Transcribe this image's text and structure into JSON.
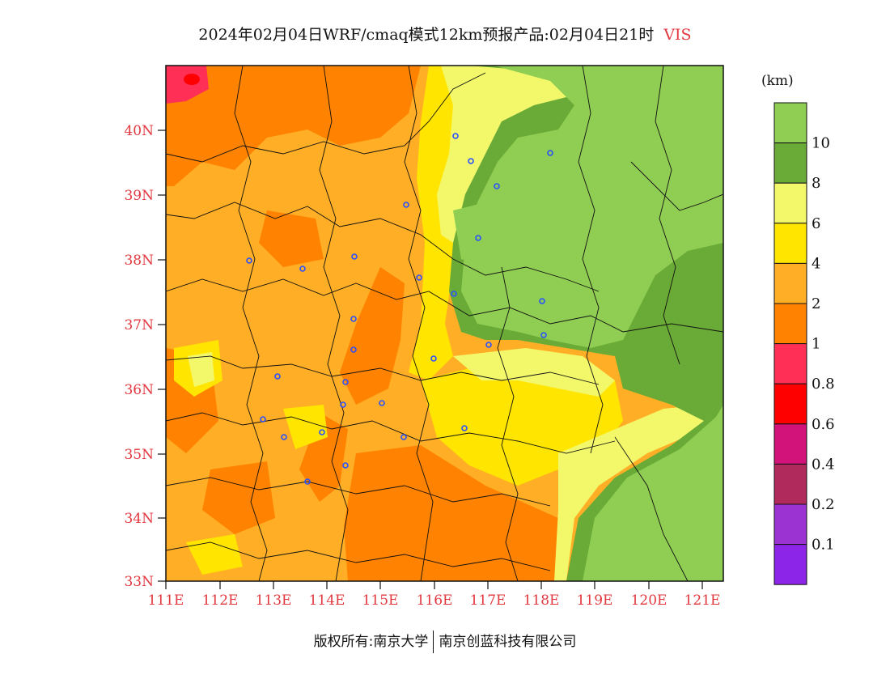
{
  "title": {
    "main": "2024年02月04日WRF/cmaq模式12km预报产品:02月04日21时",
    "variable": "VIS"
  },
  "axes": {
    "lat_labels": [
      "40N",
      "39N",
      "38N",
      "37N",
      "36N",
      "35N",
      "34N",
      "33N"
    ],
    "lon_labels": [
      "111E",
      "112E",
      "113E",
      "114E",
      "115E",
      "116E",
      "117E",
      "118E",
      "119E",
      "120E",
      "121E"
    ],
    "lat_range": [
      33,
      41
    ],
    "lon_range": [
      111,
      121.4
    ]
  },
  "colorbar": {
    "unit": "(km)",
    "bins": [
      {
        "color": "#8fcd53",
        "label": "10"
      },
      {
        "color": "#6aab37",
        "label": "8"
      },
      {
        "color": "#f2f86a",
        "label": "6"
      },
      {
        "color": "#ffe500",
        "label": "4"
      },
      {
        "color": "#ffae25",
        "label": "2"
      },
      {
        "color": "#ff8200",
        "label": "1"
      },
      {
        "color": "#ff2f55",
        "label": "0.8"
      },
      {
        "color": "#ff0000",
        "label": "0.6"
      },
      {
        "color": "#d1137a",
        "label": "0.4"
      },
      {
        "color": "#b12a5c",
        "label": "0.2"
      },
      {
        "color": "#9b33d3",
        "label": "0.1"
      },
      {
        "color": "#8c25e8",
        "label": ""
      }
    ]
  },
  "footer": {
    "left": "版权所有:南京大学",
    "right": "南京创蓝科技有限公司"
  }
}
